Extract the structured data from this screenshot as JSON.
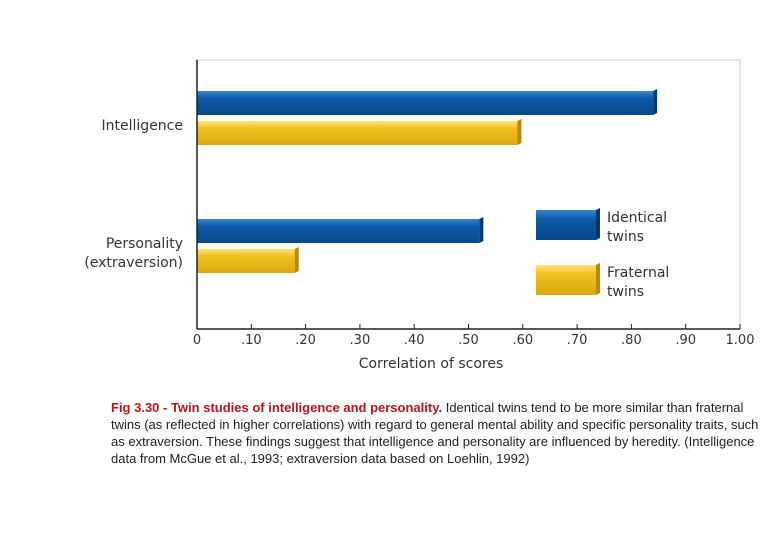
{
  "chart_data": {
    "type": "bar",
    "orientation": "horizontal",
    "categories": [
      [
        "Intelligence"
      ],
      [
        "Personality",
        "(extraversion)"
      ]
    ],
    "series": [
      {
        "name": "Identical twins",
        "name_lines": [
          "Identical",
          "twins"
        ],
        "values": [
          0.84,
          0.52
        ],
        "color": "#0a5aa5"
      },
      {
        "name": "Fraternal twins",
        "name_lines": [
          "Fraternal",
          "twins"
        ],
        "values": [
          0.59,
          0.18
        ],
        "color": "#f0be1e"
      }
    ],
    "xlabel": "Correlation of scores",
    "xlim": [
      0,
      1.0
    ],
    "ticks": [
      0,
      0.1,
      0.2,
      0.3,
      0.4,
      0.5,
      0.6,
      0.7,
      0.8,
      0.9,
      1.0
    ],
    "tick_labels": [
      "0",
      ".10",
      ".20",
      ".30",
      ".40",
      ".50",
      ".60",
      ".70",
      ".80",
      ".90",
      "1.00"
    ],
    "grid": false,
    "legend": "right"
  },
  "caption": {
    "title": "Fig 3.30 - Twin studies of intelligence and personality.",
    "text": "Identical twins tend to be more similar than fraternal twins (as reflected in higher correlations) with regard to general mental ability and specific personality traits, such as extraversion. These findings suggest that intelligence and personality are influenced by heredity. (Intelligence data from McGue et al., 1993; extraversion data based on Loehlin, 1992)"
  }
}
